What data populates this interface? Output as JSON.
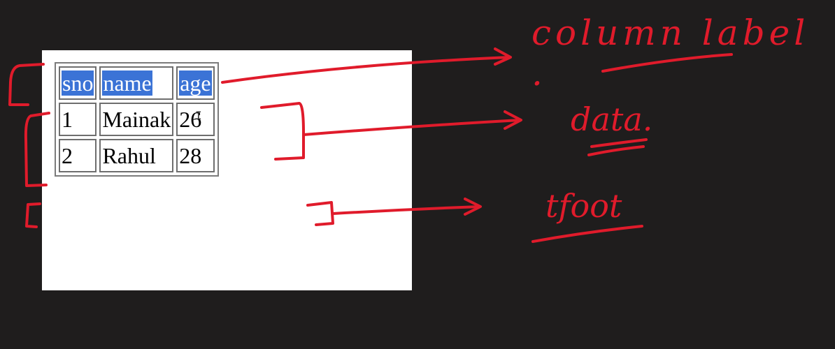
{
  "table": {
    "headers": [
      "sno",
      "name",
      "age"
    ],
    "rows": [
      [
        "1",
        "Mainak",
        "26"
      ],
      [
        "2",
        "Rahul",
        "28"
      ]
    ]
  },
  "annotations": {
    "header_note": "column label .",
    "body_note": "data.",
    "footer_note": "tfoot"
  },
  "colors": {
    "ink": "#e01b2b",
    "selection": "#3b73d6",
    "background": "#1f1d1d"
  }
}
